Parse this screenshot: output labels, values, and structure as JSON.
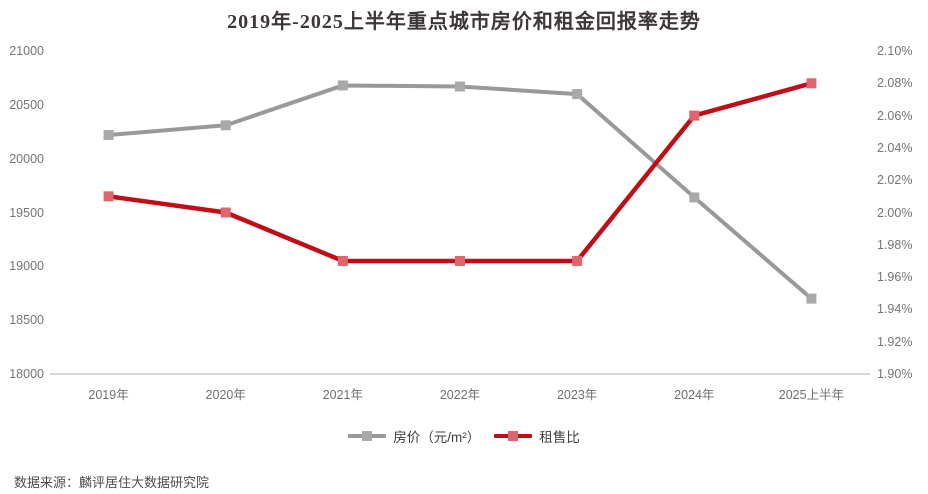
{
  "title": "2019年-2025上半年重点城市房价和租金回报率走势",
  "source": "数据来源：麟评居住大数据研究院",
  "colors": {
    "title_text": "#3e3737",
    "axis_text": "#757575",
    "axis_line": "#c9c9c9",
    "price_line": "#999999",
    "price_marker": "#a9a9a9",
    "ratio_line": "#c00d17",
    "ratio_marker": "#e0646b",
    "legend_text": "#3f3f3f",
    "source_text": "#4d4d4d",
    "background": "#ffffff"
  },
  "chart_data": {
    "type": "line",
    "title": "2019年-2025上半年重点城市房价和租金回报率走势",
    "categories": [
      "2019年",
      "2020年",
      "2021年",
      "2022年",
      "2023年",
      "2024年",
      "2025上半年"
    ],
    "series": [
      {
        "name": "房价（元/m²）",
        "axis": "left",
        "values": [
          20220,
          20310,
          20680,
          20670,
          20600,
          19640,
          18700
        ]
      },
      {
        "name": "租售比",
        "axis": "right",
        "values": [
          2.01,
          2.0,
          1.97,
          1.97,
          1.97,
          2.06,
          2.08
        ]
      }
    ],
    "left_axis": {
      "min": 18000,
      "max": 21000,
      "step": 500,
      "tick_labels": [
        "18000",
        "18500",
        "19000",
        "19500",
        "20000",
        "20500",
        "21000"
      ]
    },
    "right_axis": {
      "min": 1.9,
      "max": 2.1,
      "step": 0.02,
      "tick_labels": [
        "1.90%",
        "1.92%",
        "1.94%",
        "1.96%",
        "1.98%",
        "2.00%",
        "2.02%",
        "2.04%",
        "2.06%",
        "2.08%",
        "2.10%"
      ]
    },
    "grid": false,
    "legend_position": "bottom"
  }
}
